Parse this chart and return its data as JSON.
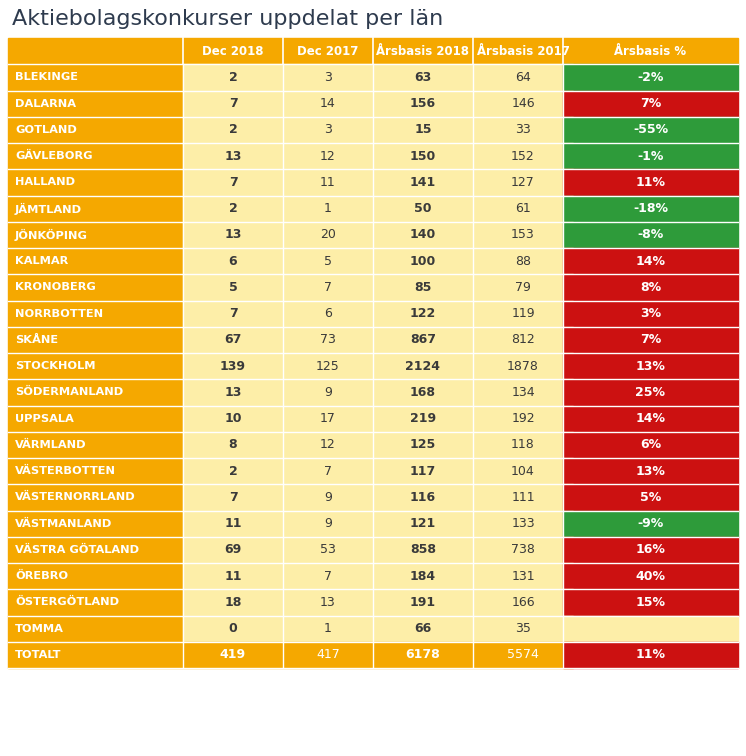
{
  "title": "Aktiebolagskonkurser uppdelat per län",
  "columns": [
    "",
    "Dec 2018",
    "Dec 2017",
    "Årsbasis 2018",
    "Årsbasis 2017",
    "Årsbasis %"
  ],
  "rows": [
    {
      "lan": "BLEKINGE",
      "dec2018": "2",
      "dec2017": "3",
      "ars2018": "63",
      "ars2017": "64",
      "pct": "-2%",
      "pct_color": "green"
    },
    {
      "lan": "DALARNA",
      "dec2018": "7",
      "dec2017": "14",
      "ars2018": "156",
      "ars2017": "146",
      "pct": "7%",
      "pct_color": "red"
    },
    {
      "lan": "GOTLAND",
      "dec2018": "2",
      "dec2017": "3",
      "ars2018": "15",
      "ars2017": "33",
      "pct": "-55%",
      "pct_color": "green"
    },
    {
      "lan": "GÄVLEBORG",
      "dec2018": "13",
      "dec2017": "12",
      "ars2018": "150",
      "ars2017": "152",
      "pct": "-1%",
      "pct_color": "green"
    },
    {
      "lan": "HALLAND",
      "dec2018": "7",
      "dec2017": "11",
      "ars2018": "141",
      "ars2017": "127",
      "pct": "11%",
      "pct_color": "red"
    },
    {
      "lan": "JÄMTLAND",
      "dec2018": "2",
      "dec2017": "1",
      "ars2018": "50",
      "ars2017": "61",
      "pct": "-18%",
      "pct_color": "green"
    },
    {
      "lan": "JÖNKÖPING",
      "dec2018": "13",
      "dec2017": "20",
      "ars2018": "140",
      "ars2017": "153",
      "pct": "-8%",
      "pct_color": "green"
    },
    {
      "lan": "KALMAR",
      "dec2018": "6",
      "dec2017": "5",
      "ars2018": "100",
      "ars2017": "88",
      "pct": "14%",
      "pct_color": "red"
    },
    {
      "lan": "KRONOBERG",
      "dec2018": "5",
      "dec2017": "7",
      "ars2018": "85",
      "ars2017": "79",
      "pct": "8%",
      "pct_color": "red"
    },
    {
      "lan": "NORRBOTTEN",
      "dec2018": "7",
      "dec2017": "6",
      "ars2018": "122",
      "ars2017": "119",
      "pct": "3%",
      "pct_color": "red"
    },
    {
      "lan": "SKÅNE",
      "dec2018": "67",
      "dec2017": "73",
      "ars2018": "867",
      "ars2017": "812",
      "pct": "7%",
      "pct_color": "red"
    },
    {
      "lan": "STOCKHOLM",
      "dec2018": "139",
      "dec2017": "125",
      "ars2018": "2124",
      "ars2017": "1878",
      "pct": "13%",
      "pct_color": "red"
    },
    {
      "lan": "SÖDERMANLAND",
      "dec2018": "13",
      "dec2017": "9",
      "ars2018": "168",
      "ars2017": "134",
      "pct": "25%",
      "pct_color": "red"
    },
    {
      "lan": "UPPSALA",
      "dec2018": "10",
      "dec2017": "17",
      "ars2018": "219",
      "ars2017": "192",
      "pct": "14%",
      "pct_color": "red"
    },
    {
      "lan": "VÄRMLAND",
      "dec2018": "8",
      "dec2017": "12",
      "ars2018": "125",
      "ars2017": "118",
      "pct": "6%",
      "pct_color": "red"
    },
    {
      "lan": "VÄSTERBOTTEN",
      "dec2018": "2",
      "dec2017": "7",
      "ars2018": "117",
      "ars2017": "104",
      "pct": "13%",
      "pct_color": "red"
    },
    {
      "lan": "VÄSTERNORRLAND",
      "dec2018": "7",
      "dec2017": "9",
      "ars2018": "116",
      "ars2017": "111",
      "pct": "5%",
      "pct_color": "red"
    },
    {
      "lan": "VÄSTMANLAND",
      "dec2018": "11",
      "dec2017": "9",
      "ars2018": "121",
      "ars2017": "133",
      "pct": "-9%",
      "pct_color": "green"
    },
    {
      "lan": "VÄSTRA GÖTALAND",
      "dec2018": "69",
      "dec2017": "53",
      "ars2018": "858",
      "ars2017": "738",
      "pct": "16%",
      "pct_color": "red"
    },
    {
      "lan": "ÖREBRO",
      "dec2018": "11",
      "dec2017": "7",
      "ars2018": "184",
      "ars2017": "131",
      "pct": "40%",
      "pct_color": "red"
    },
    {
      "lan": "ÖSTERGÖTLAND",
      "dec2018": "18",
      "dec2017": "13",
      "ars2018": "191",
      "ars2017": "166",
      "pct": "15%",
      "pct_color": "red"
    },
    {
      "lan": "TOMMA",
      "dec2018": "0",
      "dec2017": "1",
      "ars2018": "66",
      "ars2017": "35",
      "pct": "",
      "pct_color": "none"
    },
    {
      "lan": "TOTALT",
      "dec2018": "419",
      "dec2017": "417",
      "ars2018": "6178",
      "ars2017": "5574",
      "pct": "11%",
      "pct_color": "red",
      "is_total": true
    }
  ],
  "color_gold": "#F5A800",
  "color_light_yellow": "#FDEEA8",
  "color_green": "#2E9B3A",
  "color_red": "#CC1111",
  "color_white": "#FFFFFF",
  "color_dark_text": "#3A3A3A",
  "title_color": "#2E3B4E",
  "background_color": "#FFFFFF"
}
